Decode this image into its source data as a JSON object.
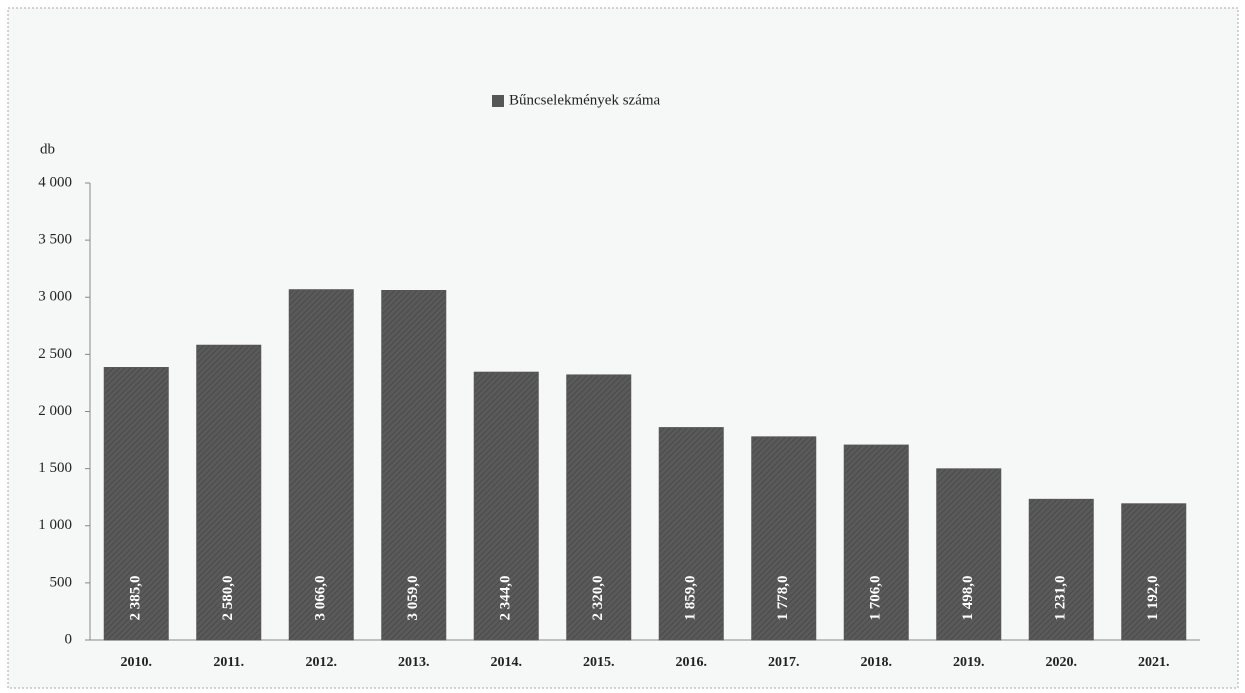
{
  "chart_data": {
    "type": "bar",
    "legend": "Bűncselekmények száma",
    "y_label": "db",
    "categories": [
      "2010.",
      "2011.",
      "2012.",
      "2013.",
      "2014.",
      "2015.",
      "2016.",
      "2017.",
      "2018.",
      "2019.",
      "2020.",
      "2021."
    ],
    "series": [
      {
        "name": "Bűncselekmények száma",
        "color": "#565656",
        "values": [
          2385,
          2580,
          3066,
          3059,
          2344,
          2320,
          1859,
          1778,
          1706,
          1498,
          1231,
          1192
        ],
        "value_labels": [
          "2 385,0",
          "2 580,0",
          "3 066,0",
          "3 059,0",
          "2 344,0",
          "2 320,0",
          "1 859,0",
          "1 778,0",
          "1 706,0",
          "1 498,0",
          "1 231,0",
          "1 192,0"
        ]
      }
    ],
    "ylim": [
      0,
      4000
    ],
    "yticks": [
      0,
      500,
      {
        "value": 1000,
        "label": "1 000"
      },
      {
        "value": 1500,
        "label": "1 500"
      },
      {
        "value": 2000,
        "label": "2 000"
      },
      {
        "value": 2500,
        "label": "2 500"
      },
      {
        "value": 3000,
        "label": "3 000"
      },
      {
        "value": 3500,
        "label": "3 500"
      },
      {
        "value": 4000,
        "label": "4 000"
      }
    ],
    "grid": false,
    "legend_position": "top"
  }
}
